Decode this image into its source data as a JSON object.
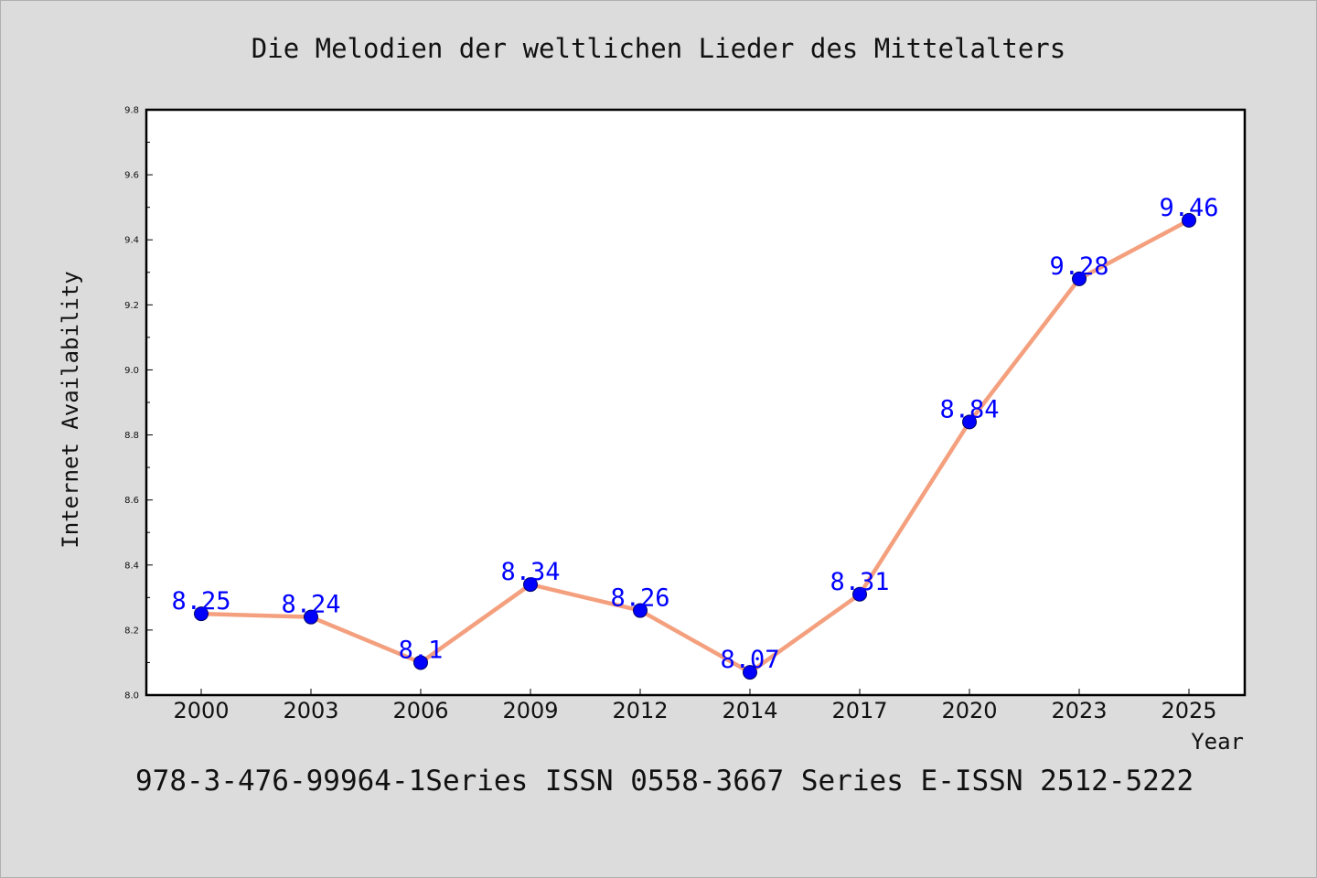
{
  "chart_data": {
    "type": "line",
    "title": "Die Melodien der weltlichen Lieder des Mittelalters",
    "xlabel": "Year",
    "ylabel": "Internet Availability",
    "categories": [
      "2000",
      "2003",
      "2006",
      "2009",
      "2012",
      "2014",
      "2017",
      "2020",
      "2023",
      "2025"
    ],
    "values": [
      8.25,
      8.24,
      8.1,
      8.34,
      8.26,
      8.07,
      8.31,
      8.84,
      9.28,
      9.46
    ],
    "data_labels": [
      "8.25",
      "8.24",
      "8.1",
      "8.34",
      "8.26",
      "8.07",
      "8.31",
      "8.84",
      "9.28",
      "9.46"
    ],
    "ylim": [
      8.0,
      9.8
    ],
    "yticks": [
      "8.0",
      "8.2",
      "8.4",
      "8.6",
      "8.8",
      "9.0",
      "9.2",
      "9.4",
      "9.6",
      "9.8"
    ],
    "grid": false,
    "colors": {
      "line": "#f4a07e",
      "marker": "#0000ff",
      "marker_edge": "#000066",
      "data_label": "#0000ff",
      "plot_background": "#ffffff",
      "page_background": "#dcdcdc"
    }
  },
  "footer": "978-3-476-99964-1Series ISSN 0558-3667 Series E-ISSN 2512-5222"
}
